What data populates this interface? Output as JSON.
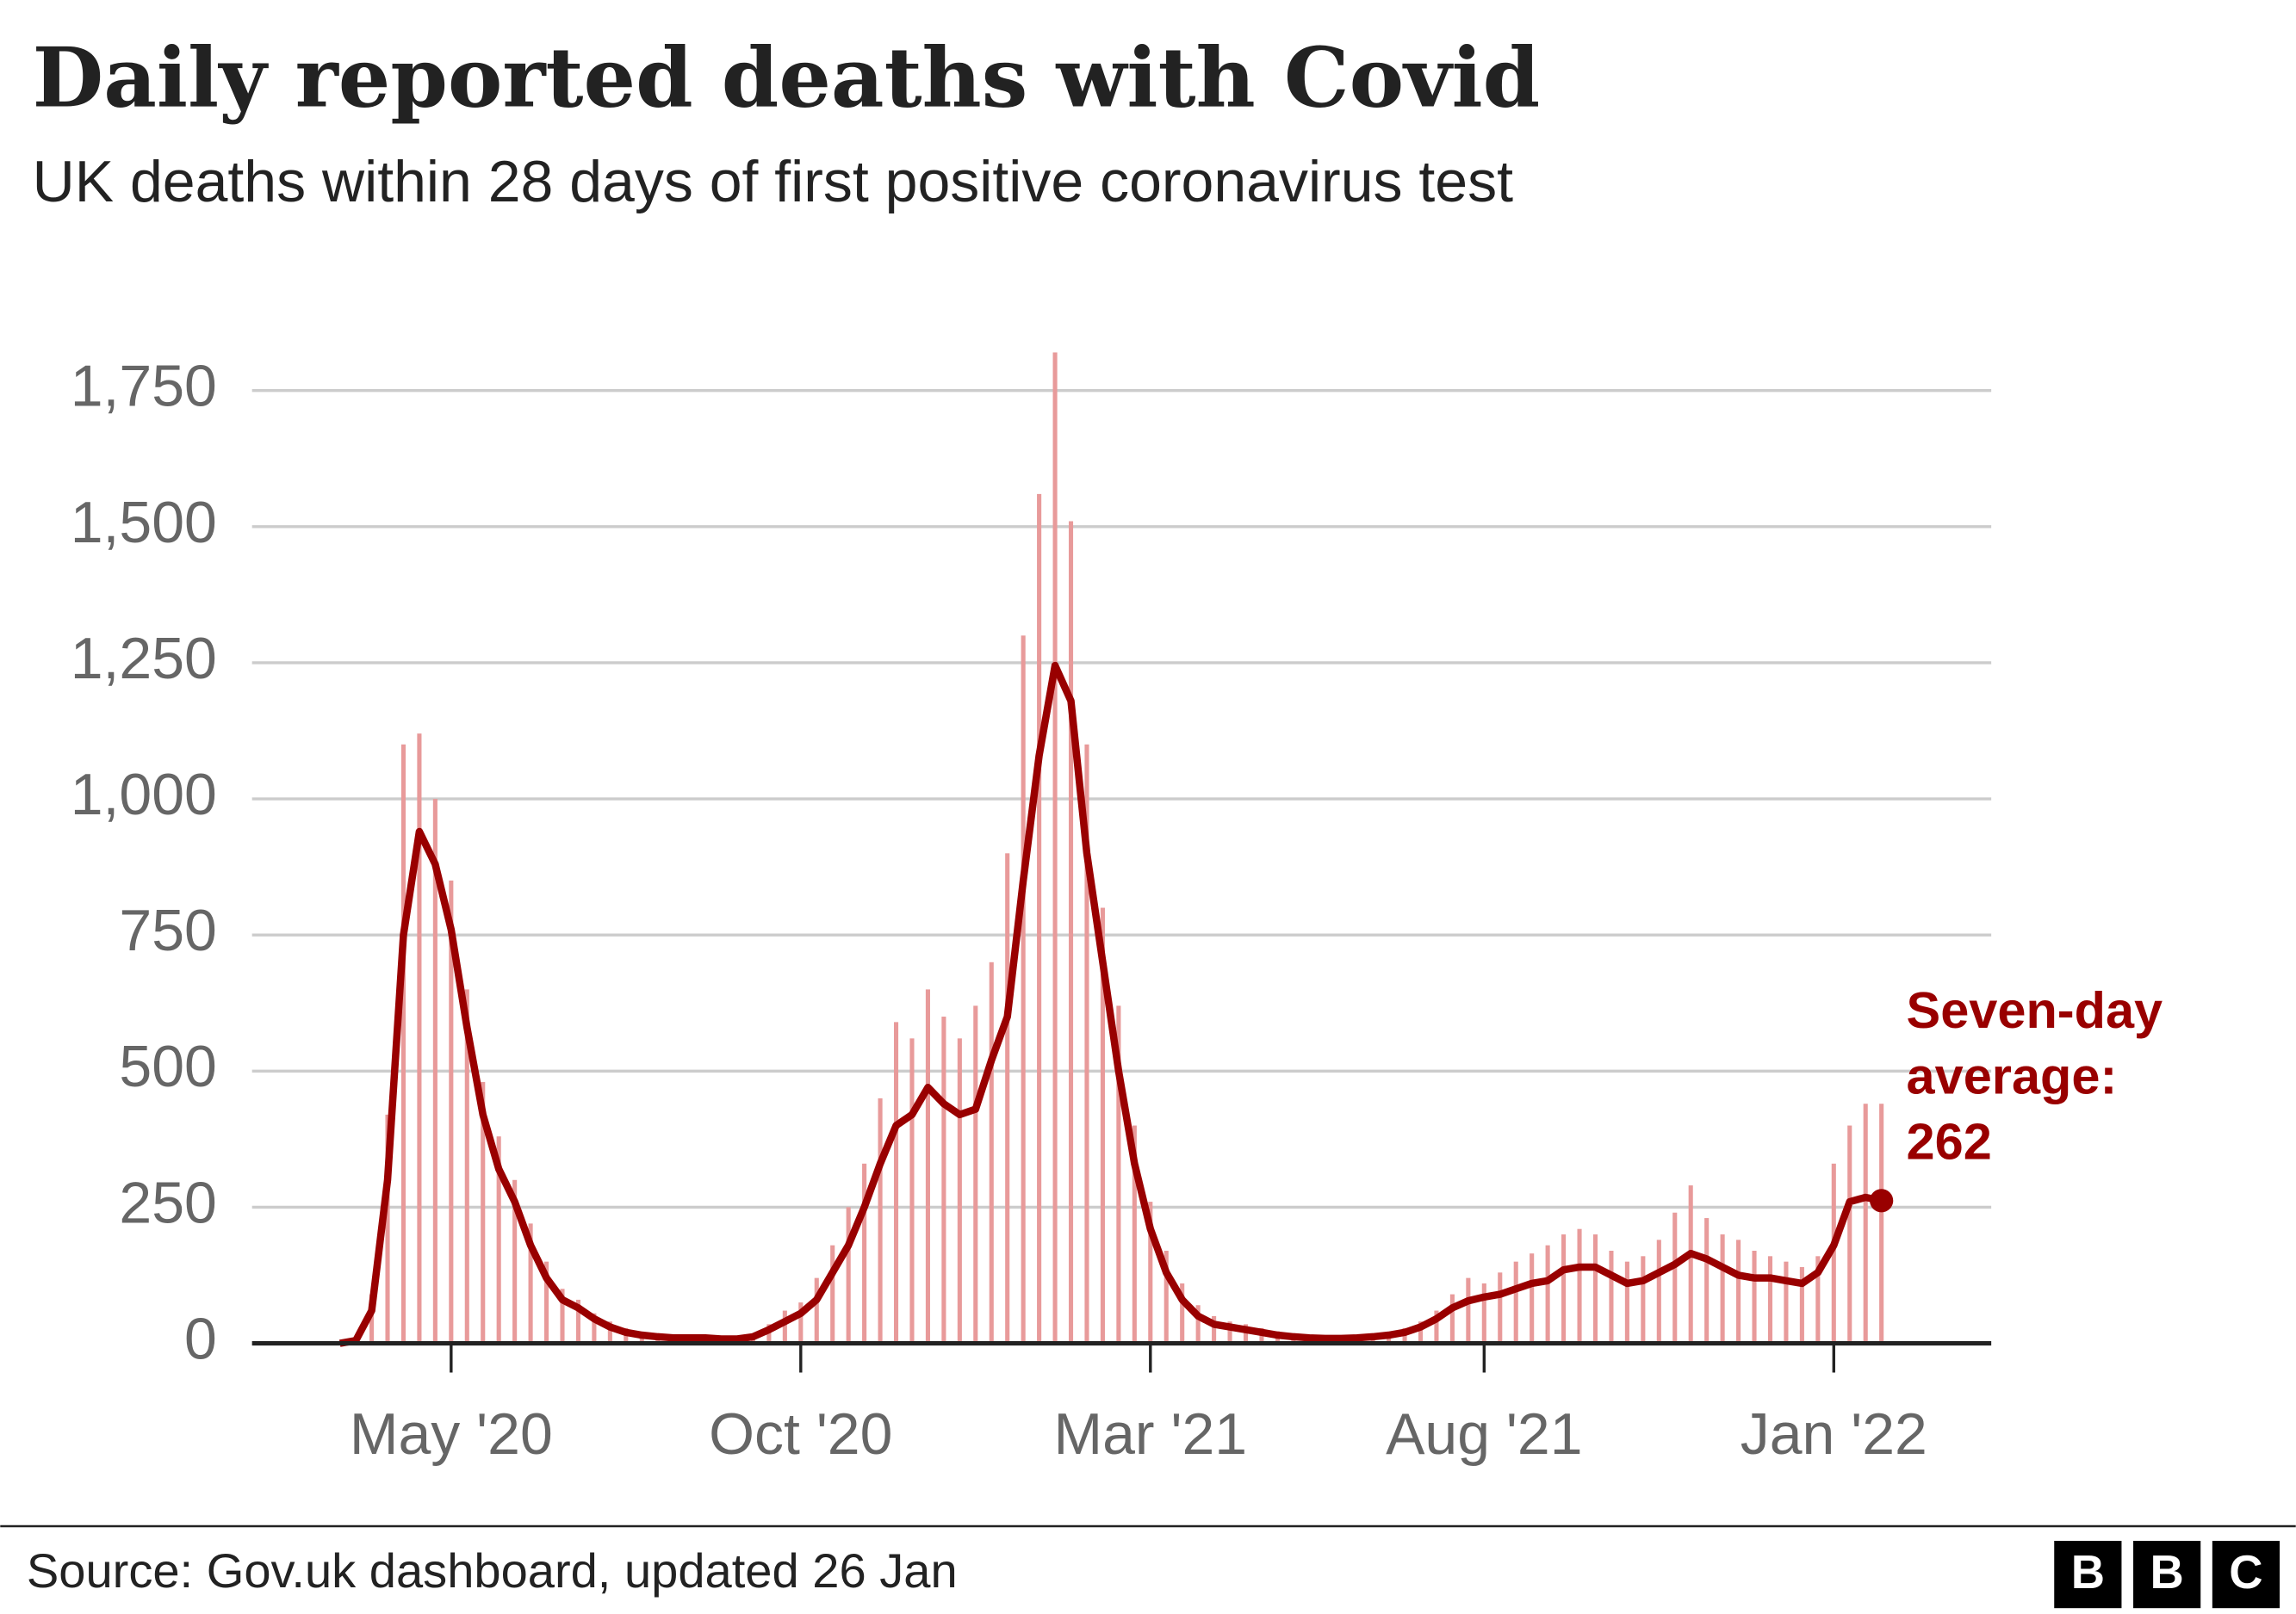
{
  "chart_data": {
    "type": "line",
    "title": "Daily reported deaths with Covid",
    "subtitle": "UK deaths within 28 days of first positive coronavirus test",
    "source": "Source: Gov.uk dashboard, updated 26 Jan",
    "logo": [
      "B",
      "B",
      "C"
    ],
    "annotation_lines": [
      "Seven-day",
      "average:"
    ],
    "categories": [
      null,
      null,
      null,
      null,
      null,
      null,
      null,
      "May '20",
      null,
      null,
      null,
      null,
      null,
      null,
      null,
      null,
      null,
      null,
      null,
      null,
      null,
      null,
      null,
      null,
      null,
      null,
      null,
      null,
      null,
      "Oct '20",
      null,
      null,
      null,
      null,
      null,
      null,
      null,
      null,
      null,
      null,
      null,
      null,
      null,
      null,
      null,
      null,
      null,
      null,
      null,
      null,
      null,
      "Mar '21",
      null,
      null,
      null,
      null,
      null,
      null,
      null,
      null,
      null,
      null,
      null,
      null,
      null,
      null,
      null,
      null,
      null,
      null,
      null,
      null,
      "Aug '21",
      null,
      null,
      null,
      null,
      null,
      null,
      null,
      null,
      null,
      null,
      null,
      null,
      null,
      null,
      null,
      null,
      null,
      null,
      null,
      null,
      null,
      "Jan '22",
      null,
      null,
      null
    ],
    "series": [
      {
        "type": "bar",
        "color": "#e89a9a",
        "values": [
          0,
          8,
          90,
          420,
          1100,
          1120,
          1000,
          850,
          650,
          480,
          380,
          300,
          220,
          150,
          100,
          80,
          55,
          40,
          28,
          20,
          15,
          14,
          13,
          12,
          11,
          12,
          18,
          35,
          60,
          75,
          120,
          180,
          250,
          330,
          450,
          590,
          560,
          650,
          600,
          560,
          620,
          700,
          900,
          1300,
          1560,
          1820,
          1510,
          1100,
          800,
          620,
          400,
          260,
          170,
          110,
          70,
          50,
          40,
          35,
          28,
          22,
          18,
          14,
          13,
          12,
          14,
          16,
          20,
          28,
          40,
          60,
          90,
          120,
          110,
          130,
          150,
          165,
          180,
          200,
          210,
          200,
          170,
          150,
          160,
          190,
          240,
          290,
          230,
          200,
          190,
          170,
          160,
          150,
          140,
          160,
          330,
          400,
          440,
          440
        ]
      },
      {
        "type": "line",
        "color": "#990000",
        "values": [
          0,
          5,
          60,
          300,
          750,
          940,
          880,
          760,
          580,
          420,
          320,
          260,
          180,
          120,
          80,
          65,
          45,
          30,
          20,
          15,
          12,
          10,
          10,
          10,
          8,
          8,
          12,
          25,
          40,
          55,
          80,
          130,
          180,
          250,
          330,
          400,
          420,
          470,
          440,
          420,
          430,
          520,
          600,
          850,
          1080,
          1245,
          1180,
          900,
          700,
          500,
          330,
          210,
          130,
          80,
          50,
          35,
          30,
          25,
          20,
          15,
          12,
          10,
          9,
          9,
          10,
          12,
          15,
          20,
          30,
          45,
          65,
          78,
          85,
          90,
          100,
          110,
          115,
          135,
          140,
          140,
          125,
          110,
          115,
          130,
          145,
          165,
          155,
          140,
          125,
          120,
          120,
          115,
          110,
          130,
          180,
          260,
          268,
          262
        ]
      }
    ],
    "ylim": [
      0,
      1825
    ],
    "yticks": [
      0,
      250,
      500,
      750,
      {
        "value": 1000,
        "label": "1,000"
      },
      {
        "value": 1250,
        "label": "1,250"
      },
      {
        "value": 1500,
        "label": "1,500"
      },
      {
        "value": 1750,
        "label": "1,750"
      }
    ],
    "grid": true
  }
}
